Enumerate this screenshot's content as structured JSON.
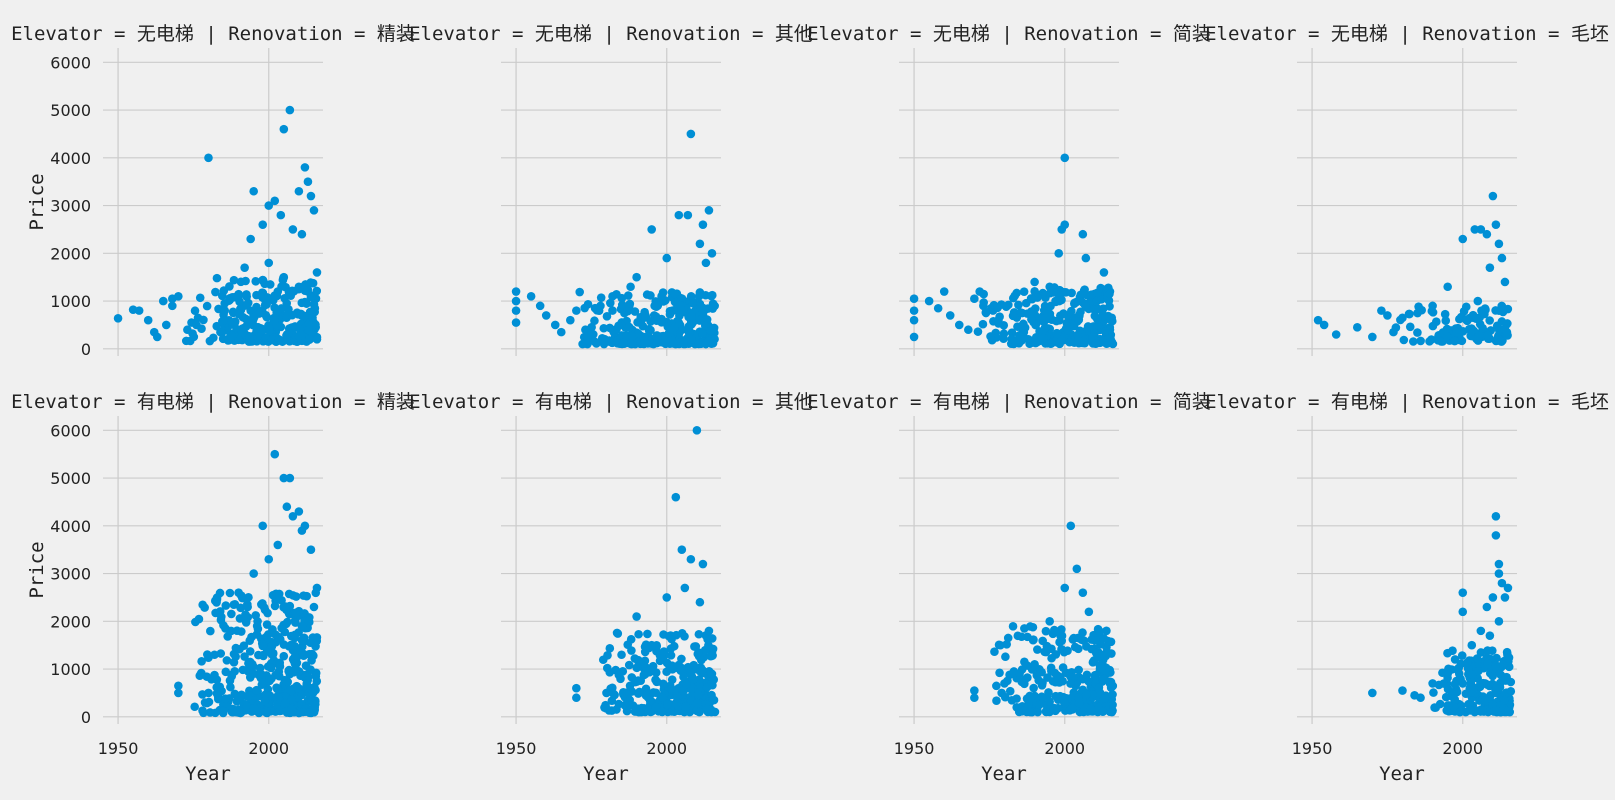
{
  "chart_data": {
    "type": "scatter",
    "x_label": "Year",
    "y_label": "Price",
    "xlim": [
      1945,
      2018
    ],
    "ylim": [
      -150,
      6300
    ],
    "x_ticks": [
      1950,
      2000
    ],
    "y_ticks": [
      0,
      1000,
      2000,
      3000,
      4000,
      5000,
      6000
    ],
    "grid": true,
    "point_color": "#008fd5",
    "facets": [
      {
        "title": "Elevator = 无电梯 | Renovation = 精装",
        "points": [
          [
            1950,
            640
          ],
          [
            1955,
            820
          ],
          [
            1957,
            800
          ],
          [
            1960,
            600
          ],
          [
            1962,
            350
          ],
          [
            1963,
            250
          ],
          [
            1965,
            1000
          ],
          [
            1966,
            500
          ],
          [
            1968,
            900
          ],
          [
            1968,
            1050
          ],
          [
            1970,
            1100
          ],
          [
            1973,
            400
          ],
          [
            1976,
            500
          ],
          [
            1980,
            4000
          ],
          [
            1985,
            600
          ],
          [
            1990,
            1100
          ],
          [
            1992,
            1700
          ],
          [
            1994,
            2300
          ],
          [
            1995,
            3300
          ],
          [
            1998,
            2600
          ],
          [
            2000,
            3000
          ],
          [
            2002,
            3100
          ],
          [
            2004,
            2800
          ],
          [
            2005,
            4600
          ],
          [
            2007,
            5000
          ],
          [
            2008,
            2500
          ],
          [
            2010,
            3300
          ],
          [
            2011,
            2400
          ],
          [
            2012,
            3800
          ],
          [
            2013,
            3500
          ],
          [
            2014,
            3200
          ],
          [
            2015,
            2900
          ],
          [
            2016,
            1600
          ],
          [
            2005,
            1500
          ],
          [
            2010,
            1300
          ],
          [
            2000,
            1800
          ],
          [
            2003,
            1200
          ],
          [
            2016,
            200
          ]
        ],
        "dense": {
          "x": [
            1972,
            2016
          ],
          "y": [
            150,
            1500
          ],
          "n": 260
        }
      },
      {
        "title": "Elevator = 无电梯 | Renovation = 其他",
        "points": [
          [
            1950,
            1200
          ],
          [
            1950,
            1000
          ],
          [
            1950,
            800
          ],
          [
            1950,
            550
          ],
          [
            1955,
            1100
          ],
          [
            1958,
            900
          ],
          [
            1960,
            700
          ],
          [
            1963,
            500
          ],
          [
            1965,
            350
          ],
          [
            1968,
            600
          ],
          [
            1970,
            800
          ],
          [
            1973,
            400
          ],
          [
            1975,
            300
          ],
          [
            1978,
            900
          ],
          [
            1982,
            1100
          ],
          [
            1988,
            1300
          ],
          [
            1990,
            1500
          ],
          [
            1995,
            2500
          ],
          [
            2000,
            1900
          ],
          [
            2004,
            2800
          ],
          [
            2007,
            2800
          ],
          [
            2008,
            4500
          ],
          [
            2011,
            2200
          ],
          [
            2012,
            2600
          ],
          [
            2014,
            2900
          ],
          [
            2015,
            2000
          ],
          [
            2013,
            1800
          ]
        ],
        "dense": {
          "x": [
            1970,
            2016
          ],
          "y": [
            100,
            1200
          ],
          "n": 280
        }
      },
      {
        "title": "Elevator = 无电梯 | Renovation = 简装",
        "points": [
          [
            1950,
            1050
          ],
          [
            1950,
            800
          ],
          [
            1950,
            600
          ],
          [
            1950,
            250
          ],
          [
            1955,
            1000
          ],
          [
            1958,
            850
          ],
          [
            1960,
            1200
          ],
          [
            1962,
            700
          ],
          [
            1965,
            500
          ],
          [
            1968,
            400
          ],
          [
            1970,
            1050
          ],
          [
            1973,
            900
          ],
          [
            1978,
            600
          ],
          [
            1990,
            1400
          ],
          [
            1995,
            1300
          ],
          [
            1998,
            2000
          ],
          [
            1999,
            2500
          ],
          [
            2000,
            2600
          ],
          [
            2000,
            4000
          ],
          [
            2006,
            2400
          ],
          [
            2007,
            1900
          ],
          [
            2013,
            1600
          ],
          [
            2015,
            400
          ]
        ],
        "dense": {
          "x": [
            1970,
            2016
          ],
          "y": [
            100,
            1300
          ],
          "n": 280
        }
      },
      {
        "title": "Elevator = 无电梯 | Renovation = 毛坯",
        "points": [
          [
            1952,
            600
          ],
          [
            1954,
            500
          ],
          [
            1958,
            300
          ],
          [
            1965,
            450
          ],
          [
            1970,
            250
          ],
          [
            1973,
            800
          ],
          [
            1975,
            700
          ],
          [
            1977,
            350
          ],
          [
            1980,
            650
          ],
          [
            1985,
            750
          ],
          [
            1990,
            900
          ],
          [
            1995,
            1300
          ],
          [
            2000,
            2300
          ],
          [
            2004,
            2500
          ],
          [
            2006,
            2500
          ],
          [
            2008,
            2400
          ],
          [
            2010,
            3200
          ],
          [
            2011,
            2600
          ],
          [
            2012,
            2200
          ],
          [
            2013,
            1900
          ],
          [
            2014,
            1400
          ],
          [
            2005,
            1000
          ],
          [
            2009,
            1700
          ]
        ],
        "dense": {
          "x": [
            1975,
            2015
          ],
          "y": [
            150,
            900
          ],
          "n": 110
        }
      },
      {
        "title": "Elevator = 有电梯 | Renovation = 精装",
        "points": [
          [
            1970,
            650
          ],
          [
            1970,
            500
          ],
          [
            1980,
            500
          ],
          [
            1982,
            1300
          ],
          [
            1990,
            2600
          ],
          [
            1993,
            2300
          ],
          [
            1995,
            3000
          ],
          [
            1998,
            4000
          ],
          [
            2000,
            3300
          ],
          [
            2002,
            5500
          ],
          [
            2005,
            5000
          ],
          [
            2007,
            5000
          ],
          [
            2006,
            4400
          ],
          [
            2008,
            4200
          ],
          [
            2010,
            4300
          ],
          [
            2012,
            4000
          ],
          [
            2014,
            3500
          ],
          [
            2015,
            2300
          ],
          [
            2016,
            2700
          ],
          [
            2011,
            3900
          ],
          [
            2003,
            3600
          ]
        ],
        "dense": {
          "x": [
            1975,
            2016
          ],
          "y": [
            80,
            2600
          ],
          "n": 420
        }
      },
      {
        "title": "Elevator = 有电梯 | Renovation = 其他",
        "points": [
          [
            1970,
            600
          ],
          [
            1970,
            400
          ],
          [
            1980,
            500
          ],
          [
            1985,
            1300
          ],
          [
            1990,
            2100
          ],
          [
            1995,
            1500
          ],
          [
            2000,
            2500
          ],
          [
            2003,
            4600
          ],
          [
            2005,
            3500
          ],
          [
            2008,
            3300
          ],
          [
            2010,
            6000
          ],
          [
            2012,
            3200
          ],
          [
            2014,
            1800
          ],
          [
            2015,
            900
          ],
          [
            2006,
            2700
          ],
          [
            2011,
            2400
          ]
        ],
        "dense": {
          "x": [
            1978,
            2016
          ],
          "y": [
            100,
            1800
          ],
          "n": 300
        }
      },
      {
        "title": "Elevator = 有电梯 | Renovation = 简装",
        "points": [
          [
            1970,
            550
          ],
          [
            1970,
            400
          ],
          [
            1980,
            700
          ],
          [
            1985,
            900
          ],
          [
            1990,
            1100
          ],
          [
            1995,
            2000
          ],
          [
            2000,
            2700
          ],
          [
            2002,
            4000
          ],
          [
            2004,
            3100
          ],
          [
            2006,
            2600
          ],
          [
            2008,
            2200
          ],
          [
            2010,
            1600
          ],
          [
            2013,
            1300
          ],
          [
            2015,
            700
          ]
        ],
        "dense": {
          "x": [
            1975,
            2016
          ],
          "y": [
            100,
            1900
          ],
          "n": 300
        }
      },
      {
        "title": "Elevator = 有电梯 | Renovation = 毛坯",
        "points": [
          [
            1970,
            500
          ],
          [
            1980,
            550
          ],
          [
            1984,
            450
          ],
          [
            1986,
            400
          ],
          [
            1990,
            700
          ],
          [
            1995,
            900
          ],
          [
            2000,
            2600
          ],
          [
            2000,
            2200
          ],
          [
            2003,
            1500
          ],
          [
            2006,
            1800
          ],
          [
            2008,
            2300
          ],
          [
            2010,
            2500
          ],
          [
            2011,
            4200
          ],
          [
            2011,
            3800
          ],
          [
            2012,
            3200
          ],
          [
            2012,
            3000
          ],
          [
            2013,
            2800
          ],
          [
            2014,
            2500
          ],
          [
            2015,
            2700
          ],
          [
            2012,
            2000
          ],
          [
            2009,
            1700
          ]
        ],
        "dense": {
          "x": [
            1990,
            2016
          ],
          "y": [
            100,
            1400
          ],
          "n": 200
        }
      }
    ]
  }
}
